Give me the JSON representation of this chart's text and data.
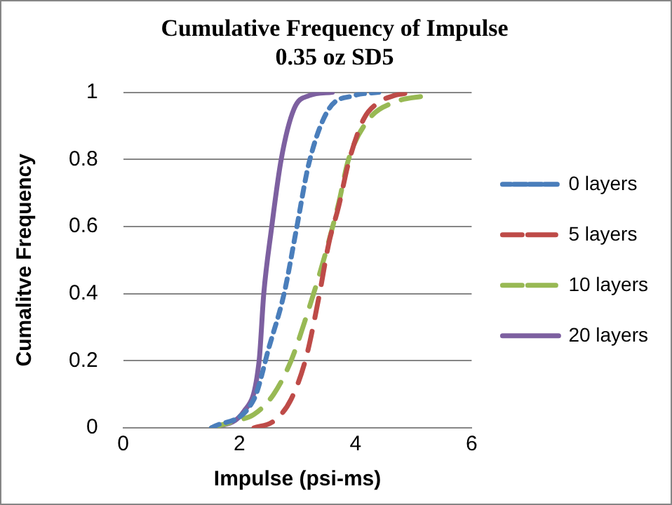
{
  "chart_data": {
    "type": "line",
    "title": [
      "Cumulative Frequency of Impulse",
      "0.35 oz SD5"
    ],
    "xlabel": "Impulse (psi-ms)",
    "ylabel": "Cumalitve Frequency",
    "xlim": [
      0,
      6
    ],
    "xticks": [
      0,
      2,
      4,
      6
    ],
    "ylim": [
      0,
      1
    ],
    "yticks": [
      0,
      0.2,
      0.4,
      0.6,
      0.8,
      1
    ],
    "grid": "y",
    "legend": "right",
    "marker": "none",
    "series": [
      {
        "name": "0 layers",
        "color": "#4a7ebb",
        "line_style": "dotted",
        "x": [
          1.52,
          2.25,
          2.51,
          2.77,
          2.98,
          3.2,
          3.54,
          3.97,
          4.4
        ],
        "values": [
          0,
          0.085,
          0.24,
          0.4,
          0.59,
          0.79,
          0.95,
          0.99,
          1
        ]
      },
      {
        "name": "5 layers",
        "color": "#be4b48",
        "line_style": "dashed",
        "x": [
          2.25,
          2.59,
          2.89,
          3.15,
          3.37,
          3.54,
          3.71,
          3.88,
          4.14,
          4.4,
          4.66,
          5.0
        ],
        "values": [
          0,
          0.02,
          0.085,
          0.21,
          0.39,
          0.55,
          0.66,
          0.79,
          0.92,
          0.97,
          0.99,
          1
        ]
      },
      {
        "name": "10 layers",
        "color": "#98b954",
        "line_style": "dashed",
        "x": [
          1.52,
          1.91,
          2.25,
          2.59,
          2.89,
          3.15,
          3.45,
          3.71,
          3.88,
          4.23,
          4.66,
          5.21
        ],
        "values": [
          0,
          0.02,
          0.04,
          0.1,
          0.2,
          0.33,
          0.5,
          0.67,
          0.8,
          0.92,
          0.97,
          0.99
        ]
      },
      {
        "name": "20 layers",
        "color": "#7d60a0",
        "line_style": "solid",
        "x": [
          1.52,
          2.08,
          2.34,
          2.42,
          2.55,
          2.72,
          2.94,
          3.2,
          3.6
        ],
        "values": [
          0,
          0.05,
          0.2,
          0.4,
          0.59,
          0.8,
          0.95,
          0.99,
          1
        ]
      }
    ]
  }
}
